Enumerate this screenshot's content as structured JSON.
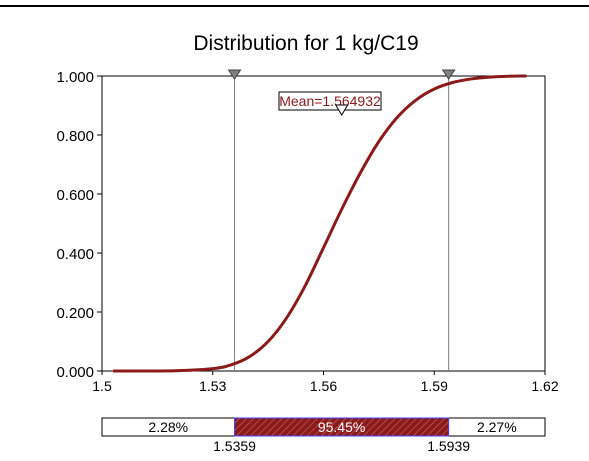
{
  "chart_data": {
    "type": "line",
    "title": "Distribution for 1 kg/C19",
    "xlabel": "",
    "ylabel": "",
    "xlim": [
      1.5,
      1.62
    ],
    "ylim": [
      0,
      1
    ],
    "x_ticks": [
      1.5,
      1.53,
      1.56,
      1.59,
      1.62
    ],
    "x_tick_labels": [
      "1.5",
      "1.53",
      "1.56",
      "1.59",
      "1.62"
    ],
    "y_ticks": [
      0,
      0.2,
      0.4,
      0.6,
      0.8,
      1.0
    ],
    "y_tick_labels": [
      "0.000",
      "0.200",
      "0.400",
      "0.600",
      "0.800",
      "1.000"
    ],
    "grid": false,
    "series": [
      {
        "color": "#8b1a1a",
        "x": [
          1.503,
          1.52,
          1.53,
          1.535,
          1.54,
          1.545,
          1.55,
          1.555,
          1.56,
          1.565,
          1.57,
          1.575,
          1.58,
          1.585,
          1.59,
          1.595,
          1.6,
          1.605,
          1.61,
          1.615
        ],
        "y": [
          0.0,
          0.001,
          0.008,
          0.021,
          0.049,
          0.1,
          0.18,
          0.288,
          0.418,
          0.55,
          0.672,
          0.778,
          0.86,
          0.918,
          0.956,
          0.978,
          0.99,
          0.996,
          0.999,
          1.0
        ]
      }
    ],
    "mean_label": "Mean=1.564932",
    "mean_value": 1.564932,
    "markers": [
      1.5359,
      1.5939
    ],
    "interval_bar": {
      "left_pct": "2.28%",
      "middle_pct": "95.45%",
      "right_pct": "2.27%",
      "left_value": 1.5359,
      "right_value": 1.5939,
      "left_label": "1.5359",
      "right_label": "1.5939"
    },
    "colors": {
      "curve": "#8b1a1a",
      "band": "#8b1a1a",
      "marker": "#808080"
    }
  }
}
